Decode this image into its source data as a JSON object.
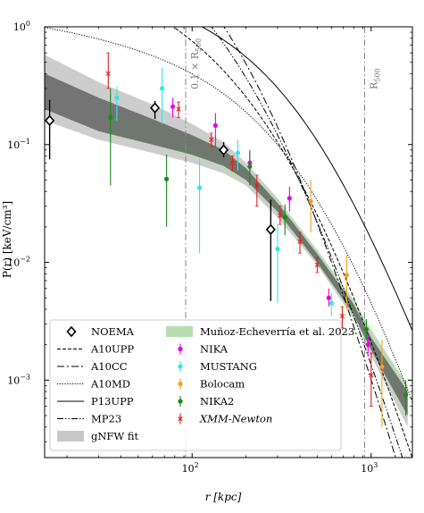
{
  "chart_data": {
    "type": "scatter",
    "title": "",
    "xlabel": "r [kpc]",
    "ylabel": "P(r) [keV/cm³]",
    "xscale": "log",
    "yscale": "log",
    "xlim": [
      15,
      1700
    ],
    "ylim": [
      0.00022,
      1.0
    ],
    "x_ticks": [
      {
        "value": 100,
        "base": "10",
        "exp": "2"
      },
      {
        "value": 1000,
        "base": "10",
        "exp": "3"
      }
    ],
    "y_ticks": [
      {
        "value": 1,
        "base": "10",
        "exp": "0"
      },
      {
        "value": 0.1,
        "base": "10",
        "exp": "−1"
      },
      {
        "value": 0.01,
        "base": "10",
        "exp": "−2"
      },
      {
        "value": 0.001,
        "base": "10",
        "exp": "−3"
      }
    ],
    "vlines": [
      {
        "x": 92,
        "label": "0.1 × R₅₀₀",
        "label_main": "0.1 × R",
        "label_sub": "500"
      },
      {
        "x": 920,
        "label": "R₅₀₀",
        "label_main": "R",
        "label_sub": "500"
      }
    ],
    "legend_placement": "bottom-left",
    "colors": {
      "nika": "#e600e6",
      "mustang": "#33e6e6",
      "bolocam": "#f0a020",
      "nika2": "#1a8a1a",
      "xmm": "#e02020",
      "gnfw_band": "#a0a0a0",
      "munoz_band": "#b8dcb0",
      "vline": "#888888"
    },
    "legend": {
      "col1": [
        {
          "key": "noema",
          "label": "NOEMA"
        },
        {
          "key": "a10upp",
          "label": "A10UPP"
        },
        {
          "key": "a10cc",
          "label": "A10CC"
        },
        {
          "key": "a10md",
          "label": "A10MD"
        },
        {
          "key": "p13upp",
          "label": "P13UPP"
        },
        {
          "key": "mp23",
          "label": "MP23"
        },
        {
          "key": "gnfw",
          "label": "gNFW fit"
        }
      ],
      "col2": [
        {
          "key": "munoz",
          "label": "Muñoz-Echeverría et al. 2023"
        },
        {
          "key": "nika",
          "label": "NIKA"
        },
        {
          "key": "mustang",
          "label": "MUSTANG"
        },
        {
          "key": "bolocam",
          "label": "Bolocam"
        },
        {
          "key": "nika2",
          "label": "NIKA2"
        },
        {
          "key": "xmm",
          "label": "XMM-Newton"
        }
      ]
    },
    "models": [
      {
        "key": "a10cc",
        "P0": 3.249,
        "rs": 260,
        "g": 0.7736,
        "a": 1.2223,
        "b": 5.49
      },
      {
        "key": "mp23",
        "P0": 2.5,
        "rs": 290,
        "g": 0.65,
        "a": 1.1,
        "b": 5.3
      },
      {
        "key": "a10upp",
        "P0": 1.3,
        "rs": 420,
        "g": 0.31,
        "a": 1.05,
        "b": 5.49
      },
      {
        "key": "p13upp",
        "P0": 1.0,
        "rs": 450,
        "g": 0.31,
        "a": 1.33,
        "b": 4.13
      },
      {
        "key": "a10md",
        "P0": 0.52,
        "rs": 560,
        "g": 0.2,
        "a": 1.1,
        "b": 5.0
      }
    ],
    "gnfw_band": [
      {
        "r": 15,
        "lo": 0.16,
        "hi": 0.58,
        "inlo": 0.2,
        "inhi": 0.4
      },
      {
        "r": 30,
        "lo": 0.11,
        "hi": 0.34,
        "inlo": 0.13,
        "inhi": 0.25
      },
      {
        "r": 60,
        "lo": 0.085,
        "hi": 0.22,
        "inlo": 0.1,
        "inhi": 0.165
      },
      {
        "r": 100,
        "lo": 0.07,
        "hi": 0.15,
        "inlo": 0.082,
        "inhi": 0.12
      },
      {
        "r": 150,
        "lo": 0.057,
        "hi": 0.105,
        "inlo": 0.066,
        "inhi": 0.09
      },
      {
        "r": 200,
        "lo": 0.045,
        "hi": 0.07,
        "inlo": 0.05,
        "inhi": 0.063
      },
      {
        "r": 300,
        "lo": 0.024,
        "hi": 0.035,
        "inlo": 0.027,
        "inhi": 0.032
      },
      {
        "r": 500,
        "lo": 0.0095,
        "hi": 0.0125,
        "inlo": 0.01,
        "inhi": 0.0118
      },
      {
        "r": 800,
        "lo": 0.0033,
        "hi": 0.0048,
        "inlo": 0.0036,
        "inhi": 0.0044
      },
      {
        "r": 1000,
        "lo": 0.0016,
        "hi": 0.0026,
        "inlo": 0.0018,
        "inhi": 0.0023
      },
      {
        "r": 1600,
        "lo": 0.0004,
        "hi": 0.0009,
        "inlo": 0.0005,
        "inhi": 0.0008
      }
    ],
    "munoz_band": [
      {
        "r": 35,
        "lo": 0.12,
        "hi": 0.19
      },
      {
        "r": 60,
        "lo": 0.1,
        "hi": 0.155
      },
      {
        "r": 100,
        "lo": 0.08,
        "hi": 0.12
      },
      {
        "r": 150,
        "lo": 0.062,
        "hi": 0.092
      },
      {
        "r": 200,
        "lo": 0.047,
        "hi": 0.066
      },
      {
        "r": 300,
        "lo": 0.026,
        "hi": 0.034
      },
      {
        "r": 500,
        "lo": 0.0098,
        "hi": 0.0128
      },
      {
        "r": 800,
        "lo": 0.0035,
        "hi": 0.0048
      },
      {
        "r": 1000,
        "lo": 0.0018,
        "hi": 0.0027
      },
      {
        "r": 1600,
        "lo": 0.00045,
        "hi": 0.0009
      }
    ],
    "series": [
      {
        "name": "NOEMA",
        "key": "noema",
        "marker": "diamond",
        "points": [
          {
            "x": 16,
            "y": 0.16,
            "lo": 0.075,
            "hi": 0.24
          },
          {
            "x": 62,
            "y": 0.205,
            "lo": 0.165,
            "hi": 0.235
          },
          {
            "x": 150,
            "y": 0.09,
            "lo": 0.078,
            "hi": 0.105
          },
          {
            "x": 275,
            "y": 0.019,
            "lo": 0.0047,
            "hi": 0.034
          }
        ]
      },
      {
        "name": "NIKA",
        "key": "nika",
        "marker": "dot",
        "points": [
          {
            "x": 78,
            "y": 0.21,
            "lo": 0.17,
            "hi": 0.25
          },
          {
            "x": 135,
            "y": 0.145,
            "lo": 0.095,
            "hi": 0.185
          },
          {
            "x": 210,
            "y": 0.07,
            "lo": 0.055,
            "hi": 0.09
          },
          {
            "x": 350,
            "y": 0.035,
            "lo": 0.027,
            "hi": 0.044
          },
          {
            "x": 580,
            "y": 0.005,
            "lo": 0.0042,
            "hi": 0.006
          },
          {
            "x": 960,
            "y": 0.002,
            "lo": 0.0016,
            "hi": 0.0025
          }
        ]
      },
      {
        "name": "MUSTANG",
        "key": "mustang",
        "marker": "dot",
        "points": [
          {
            "x": 38,
            "y": 0.25,
            "lo": 0.16,
            "hi": 0.31
          },
          {
            "x": 68,
            "y": 0.3,
            "lo": 0.15,
            "hi": 0.45
          },
          {
            "x": 110,
            "y": 0.043,
            "lo": 0.012,
            "hi": 0.075
          },
          {
            "x": 180,
            "y": 0.085,
            "lo": 0.06,
            "hi": 0.11
          },
          {
            "x": 300,
            "y": 0.013,
            "lo": 0.0045,
            "hi": 0.021
          },
          {
            "x": 600,
            "y": 0.0045,
            "lo": 0.0035,
            "hi": 0.0055
          }
        ]
      },
      {
        "name": "Bolocam",
        "key": "bolocam",
        "marker": "dot",
        "points": [
          {
            "x": 460,
            "y": 0.033,
            "lo": 0.018,
            "hi": 0.05
          },
          {
            "x": 730,
            "y": 0.0078,
            "lo": 0.004,
            "hi": 0.0115
          },
          {
            "x": 1150,
            "y": 0.0013,
            "lo": 0.0004,
            "hi": 0.0022
          }
        ]
      },
      {
        "name": "NIKA2",
        "key": "nika2",
        "marker": "dot",
        "points": [
          {
            "x": 35,
            "y": 0.17,
            "lo": 0.045,
            "hi": 0.3
          },
          {
            "x": 72,
            "y": 0.051,
            "lo": 0.02,
            "hi": 0.082
          },
          {
            "x": 210,
            "y": 0.065,
            "lo": 0.045,
            "hi": 0.085
          },
          {
            "x": 330,
            "y": 0.024,
            "lo": 0.017,
            "hi": 0.031
          },
          {
            "x": 940,
            "y": 0.0027,
            "lo": 0.0022,
            "hi": 0.0033
          },
          {
            "x": 1560,
            "y": 0.00075,
            "lo": 0.0005,
            "hi": 0.001
          }
        ]
      },
      {
        "name": "XMM-Newton",
        "key": "xmm",
        "marker": "x",
        "points": [
          {
            "x": 34,
            "y": 0.4,
            "lo": 0.3,
            "hi": 0.6
          },
          {
            "x": 84,
            "y": 0.2,
            "lo": 0.17,
            "hi": 0.23
          },
          {
            "x": 128,
            "y": 0.11,
            "lo": 0.095,
            "hi": 0.125
          },
          {
            "x": 168,
            "y": 0.07,
            "lo": 0.06,
            "hi": 0.08
          },
          {
            "x": 230,
            "y": 0.045,
            "lo": 0.03,
            "hi": 0.055
          },
          {
            "x": 310,
            "y": 0.025,
            "lo": 0.021,
            "hi": 0.03
          },
          {
            "x": 400,
            "y": 0.015,
            "lo": 0.012,
            "hi": 0.018
          },
          {
            "x": 500,
            "y": 0.0095,
            "lo": 0.0082,
            "hi": 0.011
          },
          {
            "x": 690,
            "y": 0.0035,
            "lo": 0.0028,
            "hi": 0.0042
          },
          {
            "x": 1000,
            "y": 0.0011,
            "lo": 0.0006,
            "hi": 0.0017
          }
        ]
      }
    ]
  }
}
